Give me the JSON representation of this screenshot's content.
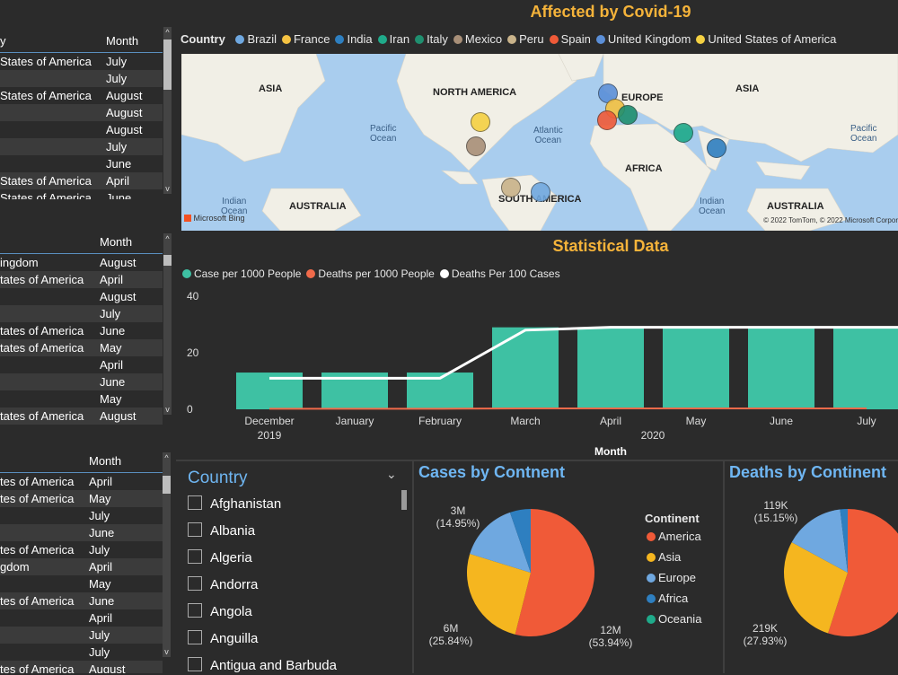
{
  "table1": {
    "col1": "y",
    "col2": "Month",
    "rows": [
      [
        "States of America",
        "July"
      ],
      [
        "",
        "July"
      ],
      [
        "States of America",
        "August"
      ],
      [
        "",
        "August"
      ],
      [
        "",
        "August"
      ],
      [
        "",
        "July"
      ],
      [
        "",
        "June"
      ],
      [
        "States of America",
        "April"
      ],
      [
        "States of America",
        "June"
      ]
    ]
  },
  "table2": {
    "col2": "Month",
    "rows": [
      [
        "ingdom",
        "August"
      ],
      [
        "tates of America",
        "April"
      ],
      [
        "",
        "August"
      ],
      [
        "",
        "July"
      ],
      [
        "tates of America",
        "June"
      ],
      [
        "tates of America",
        "May"
      ],
      [
        "",
        "April"
      ],
      [
        "",
        "June"
      ],
      [
        "",
        "May"
      ],
      [
        "tates of America",
        "August"
      ]
    ]
  },
  "table3": {
    "col2": "Month",
    "rows": [
      [
        "tes of America",
        "April"
      ],
      [
        "tes of America",
        "May"
      ],
      [
        "",
        "July"
      ],
      [
        "",
        "June"
      ],
      [
        "tes of America",
        "July"
      ],
      [
        "gdom",
        "April"
      ],
      [
        "",
        "May"
      ],
      [
        "tes of America",
        "June"
      ],
      [
        "",
        "April"
      ],
      [
        "",
        "July"
      ],
      [
        "",
        "July"
      ],
      [
        "tes of America",
        "August"
      ]
    ]
  },
  "map": {
    "title": "Affected by Covid-19",
    "legend_label": "Country",
    "legend": [
      {
        "name": "Brazil",
        "color": "#6fa8e0"
      },
      {
        "name": "France",
        "color": "#f5c242"
      },
      {
        "name": "India",
        "color": "#2e7fc0"
      },
      {
        "name": "Iran",
        "color": "#1faa8a"
      },
      {
        "name": "Italy",
        "color": "#1f8f6f"
      },
      {
        "name": "Mexico",
        "color": "#a88f78"
      },
      {
        "name": "Peru",
        "color": "#c9b38a"
      },
      {
        "name": "Spain",
        "color": "#f05a38"
      },
      {
        "name": "United Kingdom",
        "color": "#5b8fd8"
      },
      {
        "name": "United States of America",
        "color": "#f5d142"
      }
    ],
    "labels": {
      "asia_left": "ASIA",
      "north_america": "NORTH AMERICA",
      "europe": "EUROPE",
      "asia_right": "ASIA",
      "africa": "AFRICA",
      "south_america": "SOUTH AMERICA",
      "australia_left": "AUSTRALIA",
      "australia_right": "AUSTRALIA",
      "pacific_left": "Pacific\nOcean",
      "atlantic": "Atlantic\nOcean",
      "pacific_right": "Pacific\nOcean",
      "indian_left": "Indian\nOcean",
      "indian_right": "Indian\nOcean"
    },
    "attribution": "© 2022 TomTom, © 2022 Microsoft Corpor",
    "bing": "Microsoft Bing"
  },
  "chart_data": {
    "type": "bar",
    "title": "Statistical Data",
    "categories": [
      "December 2019",
      "January",
      "February",
      "March",
      "April",
      "May",
      "June",
      "July"
    ],
    "year_label": "2020",
    "xlabel": "Month",
    "ylim": [
      0,
      40
    ],
    "yticks": [
      0,
      20,
      40
    ],
    "series": [
      {
        "name": "Case per 1000 People",
        "type": "bar",
        "color": "#3ec1a3",
        "values": [
          13,
          13,
          13,
          29,
          29,
          29,
          29,
          29
        ]
      },
      {
        "name": "Deaths per 1000 People",
        "type": "line",
        "color": "#f06a4a",
        "values": [
          0.2,
          0.2,
          0.2,
          0.3,
          0.3,
          0.3,
          0.3,
          0.3
        ]
      },
      {
        "name": "Deaths Per 100 Cases",
        "type": "line",
        "color": "#ffffff",
        "values": [
          11,
          11,
          11,
          28,
          29,
          29,
          29,
          29
        ]
      }
    ]
  },
  "slicer": {
    "title": "Country",
    "items": [
      "Afghanistan",
      "Albania",
      "Algeria",
      "Andorra",
      "Angola",
      "Anguilla",
      "Antigua and Barbuda"
    ]
  },
  "pie_cases": {
    "title": "Cases by Contnent",
    "legend_title": "Continent",
    "legend": [
      {
        "name": "America",
        "color": "#f05a38"
      },
      {
        "name": "Asia",
        "color": "#f5b61f"
      },
      {
        "name": "Europe",
        "color": "#6fa8e0"
      },
      {
        "name": "Africa",
        "color": "#2e7fc0"
      },
      {
        "name": "Oceania",
        "color": "#1faa8a"
      }
    ],
    "values": [
      53.94,
      25.84,
      14.95,
      5.27,
      0.0
    ],
    "labels": {
      "a_val": "3M",
      "a_pct": "(14.95%)",
      "b_val": "6M",
      "b_pct": "(25.84%)",
      "c_val": "12M",
      "c_pct": "(53.94%)"
    }
  },
  "pie_deaths": {
    "title": "Deaths by Continent",
    "values": [
      55.0,
      27.93,
      15.15,
      1.92
    ],
    "labels": {
      "a_val": "119K",
      "a_pct": "(15.15%)",
      "b_val": "219K",
      "b_pct": "(27.93%)"
    }
  }
}
